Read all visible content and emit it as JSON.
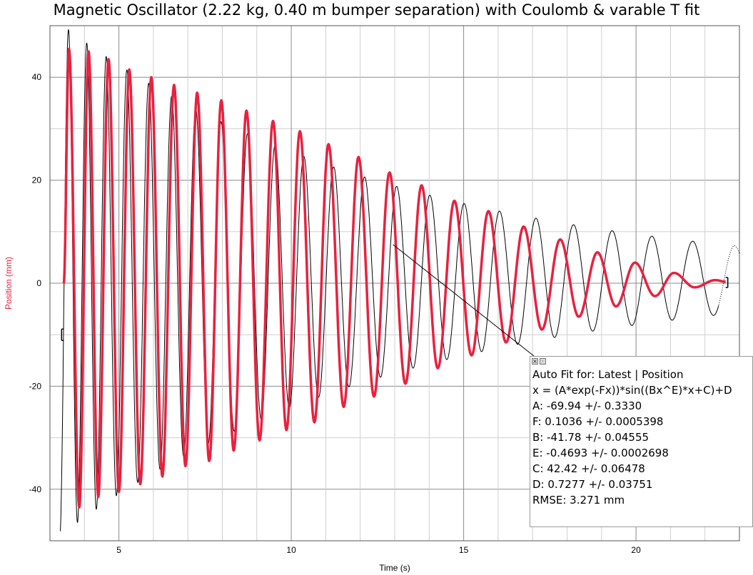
{
  "chart_data": {
    "type": "line",
    "title": "Magnetic Oscillator (2.22 kg, 0.40 m bumper separation) with Coulomb & varable T fit",
    "xlabel": "Time (s)",
    "ylabel": "Position (mm)",
    "xlim": [
      3.0,
      23.0
    ],
    "ylim": [
      -50,
      50
    ],
    "x_ticks": [
      "5",
      "10",
      "15",
      "20"
    ],
    "y_ticks": [
      "40",
      "20",
      "0",
      "-20",
      "-40"
    ],
    "grid": true,
    "series": [
      {
        "kind": "data",
        "color": "#e8213f",
        "start": 3.4,
        "end": 22.6,
        "peaks": [
          [
            3.55,
            45.5
          ],
          [
            3.85,
            -43.5
          ],
          [
            4.12,
            45.0
          ],
          [
            4.4,
            -41.5
          ],
          [
            4.7,
            43.5
          ],
          [
            5.0,
            -40.5
          ],
          [
            5.3,
            41.5
          ],
          [
            5.62,
            -39.0
          ],
          [
            5.94,
            40.0
          ],
          [
            6.26,
            -37.5
          ],
          [
            6.6,
            38.5
          ],
          [
            6.93,
            -35.5
          ],
          [
            7.27,
            37.0
          ],
          [
            7.62,
            -34.5
          ],
          [
            7.97,
            35.5
          ],
          [
            8.33,
            -32.5
          ],
          [
            8.7,
            33.5
          ],
          [
            9.08,
            -30.5
          ],
          [
            9.47,
            31.5
          ],
          [
            9.86,
            -28.5
          ],
          [
            10.25,
            29.5
          ],
          [
            10.67,
            -27.0
          ],
          [
            11.08,
            27.0
          ],
          [
            11.52,
            -24.0
          ],
          [
            11.95,
            24.5
          ],
          [
            12.4,
            -22.0
          ],
          [
            12.85,
            21.5
          ],
          [
            13.31,
            -19.5
          ],
          [
            13.78,
            19.0
          ],
          [
            14.25,
            -16.5
          ],
          [
            14.73,
            16.0
          ],
          [
            15.23,
            -14.0
          ],
          [
            15.72,
            14.0
          ],
          [
            16.23,
            -11.5
          ],
          [
            16.74,
            11.0
          ],
          [
            17.27,
            -9.0
          ],
          [
            17.8,
            8.5
          ],
          [
            18.34,
            -6.5
          ],
          [
            18.88,
            6.0
          ],
          [
            19.42,
            -4.5
          ],
          [
            19.97,
            4.0
          ],
          [
            20.55,
            -2.5
          ],
          [
            21.1,
            2.0
          ],
          [
            21.7,
            -0.8
          ],
          [
            22.3,
            0.6
          ]
        ],
        "end_value": 0.3
      },
      {
        "kind": "fit",
        "color": "#000000",
        "equation": "x = (A*exp(-Fx))*sin((Bx^E)*x+C)+D",
        "params": {
          "A": -69.94,
          "F": 0.1036,
          "B": -41.78,
          "E": -0.4693,
          "C": 42.42,
          "D": 0.7277
        },
        "start": 3.3,
        "end": 22.4,
        "dotted_end": 23.0
      }
    ]
  },
  "fit_box": {
    "lines": [
      "Auto Fit for: Latest | Position",
      "x = (A*exp(-Fx))*sin((Bx^E)*x+C)+D",
      "A: -69.94 +/- 0.3330",
      "F: 0.1036 +/- 0.0005398",
      "B: -41.78 +/- 0.04555",
      "E: -0.4693 +/- 0.0002698",
      "C: 42.42 +/- 0.06478",
      "D: 0.7277 +/- 0.03751",
      "RMSE: 3.271 mm"
    ],
    "close_icon": "close-icon",
    "options_icon": "menu-icon"
  }
}
